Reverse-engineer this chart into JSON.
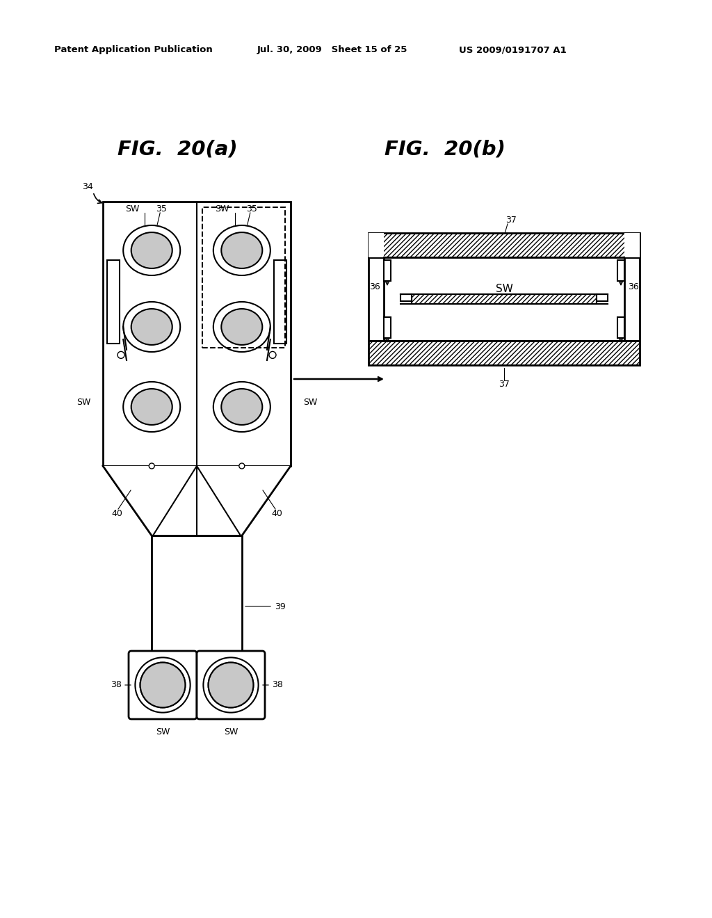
{
  "bg_color": "#ffffff",
  "header_left": "Patent Application Publication",
  "header_mid": "Jul. 30, 2009   Sheet 15 of 25",
  "header_right": "US 2009/0191707 A1",
  "fig_a_title": "FIG.  20(a)",
  "fig_b_title": "FIG.  20(b)"
}
